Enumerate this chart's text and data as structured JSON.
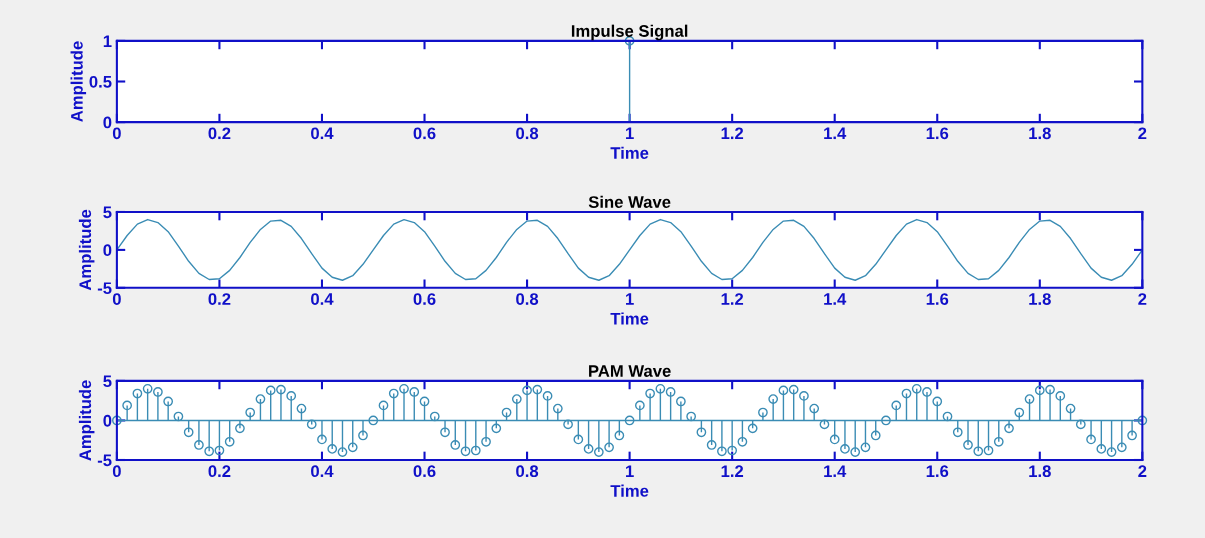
{
  "chart_data": [
    {
      "type": "lollipop",
      "title": "Impulse Signal",
      "xlabel": "Time",
      "ylabel": "Amplitude",
      "x": [
        1
      ],
      "values": [
        1
      ],
      "color": "#3a8cb4",
      "marker": "circle",
      "xlim": [
        0,
        2
      ],
      "xticks": [
        0,
        0.2,
        0.4,
        0.6,
        0.8,
        1,
        1.2,
        1.4,
        1.6,
        1.8,
        2
      ],
      "ylim": [
        0,
        1
      ],
      "yticks": [
        0,
        0.5,
        1
      ],
      "grid": false,
      "legend": false
    },
    {
      "type": "line",
      "title": "Sine Wave",
      "xlabel": "Time",
      "ylabel": "Amplitude",
      "x": [
        0,
        0.02,
        0.04,
        0.06,
        0.08,
        0.1,
        0.12,
        0.14,
        0.16,
        0.18,
        0.2,
        0.22,
        0.24,
        0.26,
        0.28,
        0.3,
        0.32,
        0.34,
        0.36,
        0.38,
        0.4,
        0.42,
        0.44,
        0.46,
        0.48,
        0.5,
        0.52,
        0.54,
        0.56,
        0.58,
        0.6,
        0.62,
        0.64,
        0.66,
        0.68,
        0.7,
        0.72,
        0.74,
        0.76,
        0.78,
        0.8,
        0.82,
        0.84,
        0.86,
        0.88,
        0.9,
        0.92,
        0.94,
        0.96,
        0.98,
        1,
        1.02,
        1.04,
        1.06,
        1.08,
        1.1,
        1.12,
        1.14,
        1.16,
        1.18,
        1.2,
        1.22,
        1.24,
        1.26,
        1.28,
        1.3,
        1.32,
        1.34,
        1.36,
        1.38,
        1.4,
        1.42,
        1.44,
        1.46,
        1.48,
        1.5,
        1.52,
        1.54,
        1.56,
        1.58,
        1.6,
        1.62,
        1.64,
        1.66,
        1.68,
        1.7,
        1.72,
        1.74,
        1.76,
        1.78,
        1.8,
        1.82,
        1.84,
        1.86,
        1.88,
        1.9,
        1.92,
        1.94,
        1.96,
        1.98,
        2
      ],
      "values": [
        0,
        1.9,
        3.4,
        4.0,
        3.6,
        2.4,
        0.5,
        -1.5,
        -3.1,
        -3.9,
        -3.8,
        -2.7,
        -1.0,
        1.0,
        2.7,
        3.8,
        3.9,
        3.1,
        1.5,
        -0.5,
        -2.4,
        -3.6,
        -4.0,
        -3.4,
        -1.9,
        0,
        1.9,
        3.4,
        4.0,
        3.6,
        2.4,
        0.5,
        -1.5,
        -3.1,
        -3.9,
        -3.8,
        -2.7,
        -1.0,
        1.0,
        2.7,
        3.8,
        3.9,
        3.1,
        1.5,
        -0.5,
        -2.4,
        -3.6,
        -4.0,
        -3.4,
        -1.9,
        0,
        1.9,
        3.4,
        4.0,
        3.6,
        2.4,
        0.5,
        -1.5,
        -3.1,
        -3.9,
        -3.8,
        -2.7,
        -1.0,
        1.0,
        2.7,
        3.8,
        3.9,
        3.1,
        1.5,
        -0.5,
        -2.4,
        -3.6,
        -4.0,
        -3.4,
        -1.9,
        0,
        1.9,
        3.4,
        4.0,
        3.6,
        2.4,
        0.5,
        -1.5,
        -3.1,
        -3.9,
        -3.8,
        -2.7,
        -1.0,
        1.0,
        2.7,
        3.8,
        3.9,
        3.1,
        1.5,
        -0.5,
        -2.4,
        -3.6,
        -4.0,
        -3.4,
        -1.9,
        0
      ],
      "color": "#3a8cb4",
      "xlim": [
        0,
        2
      ],
      "xticks": [
        0,
        0.2,
        0.4,
        0.6,
        0.8,
        1,
        1.2,
        1.4,
        1.6,
        1.8,
        2
      ],
      "ylim": [
        -5,
        5
      ],
      "yticks": [
        -5,
        0,
        5
      ],
      "grid": false,
      "legend": false
    },
    {
      "type": "lollipop",
      "title": "PAM Wave",
      "xlabel": "Time",
      "ylabel": "Amplitude",
      "x": [
        0,
        0.02,
        0.04,
        0.06,
        0.08,
        0.1,
        0.12,
        0.14,
        0.16,
        0.18,
        0.2,
        0.22,
        0.24,
        0.26,
        0.28,
        0.3,
        0.32,
        0.34,
        0.36,
        0.38,
        0.4,
        0.42,
        0.44,
        0.46,
        0.48,
        0.5,
        0.52,
        0.54,
        0.56,
        0.58,
        0.6,
        0.62,
        0.64,
        0.66,
        0.68,
        0.7,
        0.72,
        0.74,
        0.76,
        0.78,
        0.8,
        0.82,
        0.84,
        0.86,
        0.88,
        0.9,
        0.92,
        0.94,
        0.96,
        0.98,
        1,
        1.02,
        1.04,
        1.06,
        1.08,
        1.1,
        1.12,
        1.14,
        1.16,
        1.18,
        1.2,
        1.22,
        1.24,
        1.26,
        1.28,
        1.3,
        1.32,
        1.34,
        1.36,
        1.38,
        1.4,
        1.42,
        1.44,
        1.46,
        1.48,
        1.5,
        1.52,
        1.54,
        1.56,
        1.58,
        1.6,
        1.62,
        1.64,
        1.66,
        1.68,
        1.7,
        1.72,
        1.74,
        1.76,
        1.78,
        1.8,
        1.82,
        1.84,
        1.86,
        1.88,
        1.9,
        1.92,
        1.94,
        1.96,
        1.98,
        2
      ],
      "values": [
        0,
        1.9,
        3.4,
        4.0,
        3.6,
        2.4,
        0.5,
        -1.5,
        -3.1,
        -3.9,
        -3.8,
        -2.7,
        -1.0,
        1.0,
        2.7,
        3.8,
        3.9,
        3.1,
        1.5,
        -0.5,
        -2.4,
        -3.6,
        -4.0,
        -3.4,
        -1.9,
        0,
        1.9,
        3.4,
        4.0,
        3.6,
        2.4,
        0.5,
        -1.5,
        -3.1,
        -3.9,
        -3.8,
        -2.7,
        -1.0,
        1.0,
        2.7,
        3.8,
        3.9,
        3.1,
        1.5,
        -0.5,
        -2.4,
        -3.6,
        -4.0,
        -3.4,
        -1.9,
        0,
        1.9,
        3.4,
        4.0,
        3.6,
        2.4,
        0.5,
        -1.5,
        -3.1,
        -3.9,
        -3.8,
        -2.7,
        -1.0,
        1.0,
        2.7,
        3.8,
        3.9,
        3.1,
        1.5,
        -0.5,
        -2.4,
        -3.6,
        -4.0,
        -3.4,
        -1.9,
        0,
        1.9,
        3.4,
        4.0,
        3.6,
        2.4,
        0.5,
        -1.5,
        -3.1,
        -3.9,
        -3.8,
        -2.7,
        -1.0,
        1.0,
        2.7,
        3.8,
        3.9,
        3.1,
        1.5,
        -0.5,
        -2.4,
        -3.6,
        -4.0,
        -3.4,
        -1.9,
        0
      ],
      "color": "#3a8cb4",
      "marker": "circle",
      "ref_lines": [
        {
          "axis": "y",
          "value": 0,
          "color": "#3a8cb4",
          "line_style": "solid"
        }
      ],
      "xlim": [
        0,
        2
      ],
      "xticks": [
        0,
        0.2,
        0.4,
        0.6,
        0.8,
        1,
        1.2,
        1.4,
        1.6,
        1.8,
        2
      ],
      "ylim": [
        -5,
        5
      ],
      "yticks": [
        -5,
        0,
        5
      ],
      "grid": false,
      "legend": false
    }
  ]
}
